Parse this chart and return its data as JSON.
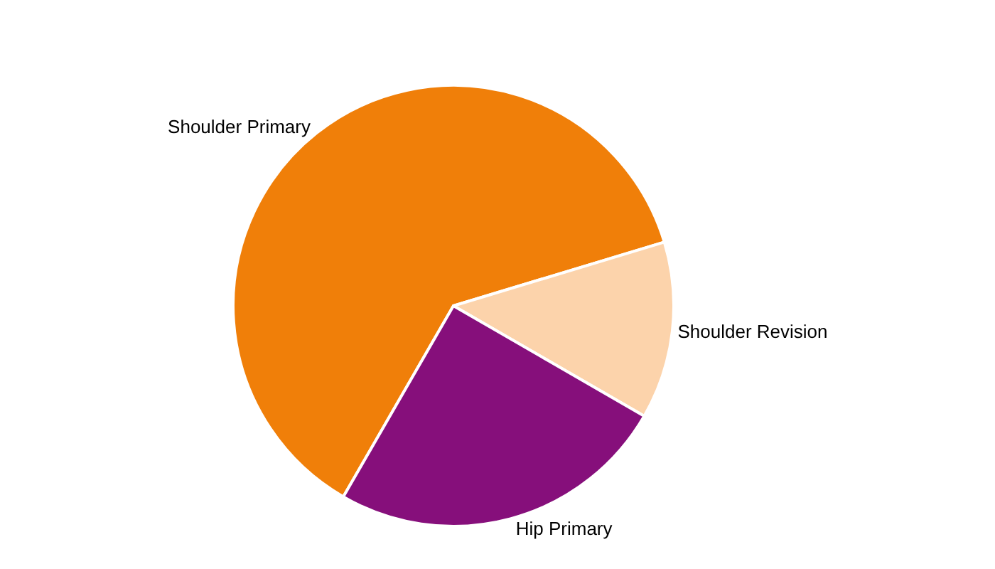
{
  "chart_data": {
    "type": "pie",
    "categories": [
      "Shoulder Primary",
      "Shoulder Revision",
      "Hip Primary"
    ],
    "values": [
      62,
      13,
      25
    ],
    "colors": [
      "#f07f09",
      "#fcd3ab",
      "#860f7b"
    ],
    "legend": false
  }
}
